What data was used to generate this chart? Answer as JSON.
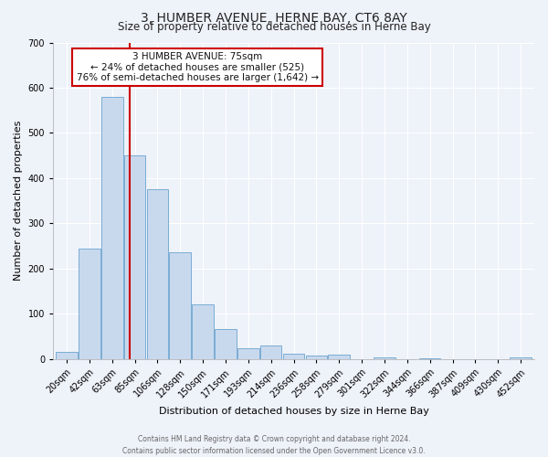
{
  "title": "3, HUMBER AVENUE, HERNE BAY, CT6 8AY",
  "subtitle": "Size of property relative to detached houses in Herne Bay",
  "xlabel": "Distribution of detached houses by size in Herne Bay",
  "ylabel": "Number of detached properties",
  "bar_color": "#c8d9ee",
  "bar_edge_color": "#7aadd4",
  "bin_labels": [
    "20sqm",
    "42sqm",
    "63sqm",
    "85sqm",
    "106sqm",
    "128sqm",
    "150sqm",
    "171sqm",
    "193sqm",
    "214sqm",
    "236sqm",
    "258sqm",
    "279sqm",
    "301sqm",
    "322sqm",
    "344sqm",
    "366sqm",
    "387sqm",
    "409sqm",
    "430sqm",
    "452sqm"
  ],
  "bar_heights": [
    15,
    245,
    580,
    450,
    375,
    235,
    120,
    67,
    23,
    30,
    12,
    8,
    10,
    0,
    4,
    0,
    2,
    0,
    0,
    0,
    3
  ],
  "ylim": [
    0,
    700
  ],
  "yticks": [
    0,
    100,
    200,
    300,
    400,
    500,
    600,
    700
  ],
  "vline_bin": 2.78,
  "vline_color": "#cc0000",
  "annotation_title": "3 HUMBER AVENUE: 75sqm",
  "annotation_line1": "← 24% of detached houses are smaller (525)",
  "annotation_line2": "76% of semi-detached houses are larger (1,642) →",
  "annotation_box_facecolor": "#ffffff",
  "annotation_box_edgecolor": "#cc0000",
  "footer_line1": "Contains HM Land Registry data © Crown copyright and database right 2024.",
  "footer_line2": "Contains public sector information licensed under the Open Government Licence v3.0.",
  "bg_color": "#eef2f9",
  "grid_color": "#ffffff",
  "title_fontsize": 10,
  "subtitle_fontsize": 8.5,
  "ylabel_fontsize": 8,
  "xlabel_fontsize": 8,
  "tick_fontsize": 7,
  "annotation_fontsize": 7.5,
  "footer_fontsize": 5.5
}
